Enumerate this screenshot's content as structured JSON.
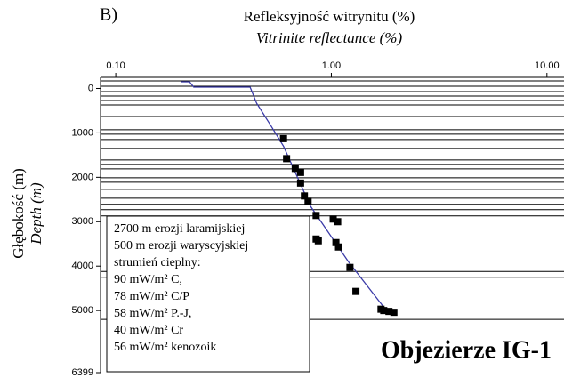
{
  "chart_data": {
    "type": "scatter",
    "panel_label": "B)",
    "x_label": "Refleksyjność witrynitu (%)",
    "x_label_en": "Vitrinite reflectance (%)",
    "y_label": "Głębokość (m)",
    "y_label_en": "Depth (m)",
    "title": "Objezierze IG-1",
    "annotation": [
      "2700 m erozji laramijskiej",
      "500 m erozji waryscyjskiej",
      "strumień cieplny:",
      "90 mW/m² C,",
      "78 mW/m² C/P",
      "58 mW/m² P.-J,",
      "40 mW/m² Cr",
      "56 mW/m² kenozoik"
    ],
    "xscale": "log",
    "xlim": [
      0.085,
      12
    ],
    "xticks": [
      {
        "value": 0.1,
        "label": "0.10"
      },
      {
        "value": 1,
        "label": "1.00"
      },
      {
        "value": 10,
        "label": "10.00"
      }
    ],
    "ylim": [
      -250,
      6399
    ],
    "yticks": [
      0,
      1000,
      2000,
      3000,
      4000,
      5000,
      6399
    ],
    "horizons": [
      -170,
      -50,
      70,
      170,
      270,
      370,
      630,
      930,
      1030,
      1150,
      1350,
      1610,
      1710,
      1810,
      2010,
      2110,
      2270,
      2470,
      2610,
      2730,
      2870,
      4120,
      4250,
      5200
    ],
    "horizon_color": "#000000",
    "series": [
      {
        "style": "line",
        "color": "#3b3ba8",
        "x": [
          0.2,
          0.22,
          0.23,
          0.42,
          0.45,
          0.52,
          0.6,
          0.8,
          1.2,
          1.8
        ],
        "y": [
          -150,
          -150,
          -30,
          -30,
          330,
          810,
          1300,
          2650,
          3900,
          5000
        ]
      },
      {
        "style": "marker",
        "color": "#000000",
        "x": [
          0.6,
          0.62,
          0.68,
          0.72,
          0.72,
          0.75,
          0.78,
          0.85,
          1.02,
          1.07,
          0.85,
          0.87,
          1.05,
          1.08,
          1.22,
          1.3,
          1.7,
          1.75,
          1.85,
          1.95
        ],
        "y": [
          1130,
          1580,
          1800,
          1890,
          2130,
          2420,
          2540,
          2860,
          2940,
          3000,
          3390,
          3430,
          3470,
          3570,
          4030,
          4570,
          4970,
          5000,
          5020,
          5040
        ]
      }
    ]
  }
}
